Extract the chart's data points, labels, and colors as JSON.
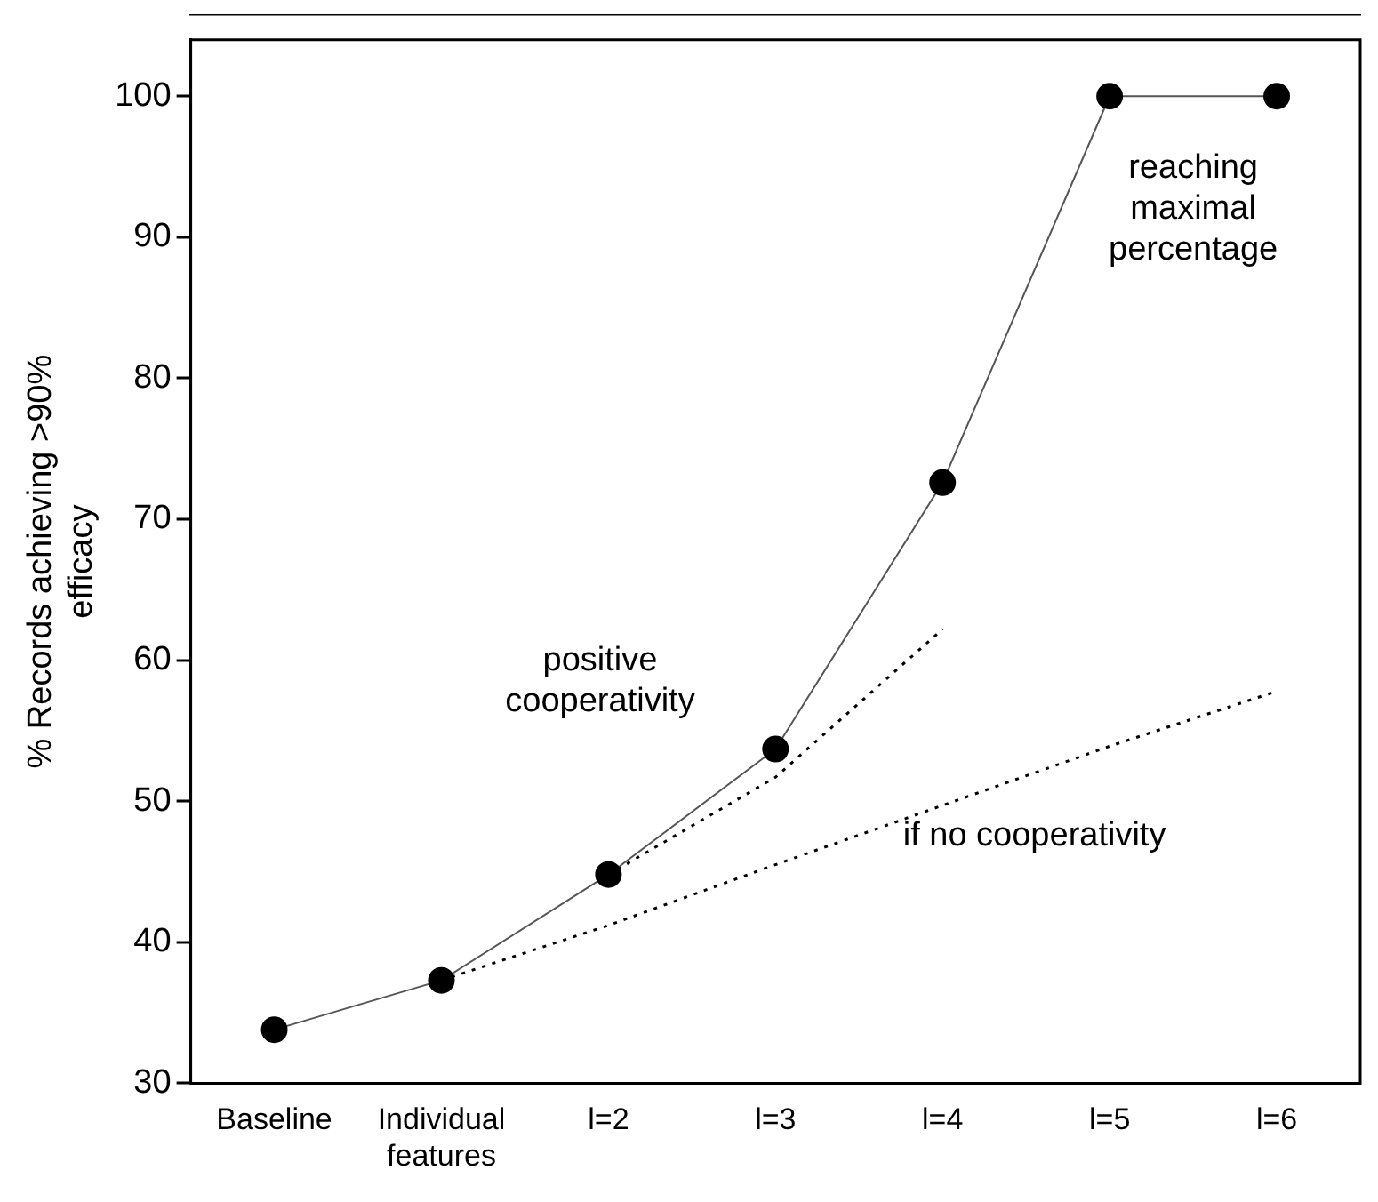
{
  "chart_data": {
    "type": "line",
    "ylabel": "% Records achieving >90% efficacy",
    "categories": [
      "Baseline",
      "Individual features",
      "l=2",
      "l=3",
      "l=4",
      "l=5",
      "l=6"
    ],
    "series": [
      {
        "color": "#000000",
        "values": [
          33.8,
          37.3,
          44.8,
          53.7,
          72.6,
          100,
          100
        ],
        "marker": "circle",
        "line_style": "solid"
      },
      {
        "color": "#000000",
        "values": [
          null,
          37.3,
          41.2,
          45.5,
          49.7,
          53.9,
          57.8
        ],
        "marker": "none",
        "line_style": "dotted"
      },
      {
        "color": "#000000",
        "values": [
          null,
          null,
          44.8,
          51.7,
          62.2,
          null,
          null
        ],
        "marker": "none",
        "line_style": "dotted"
      }
    ],
    "annotations": [
      "positive cooperativity",
      "if no cooperativity",
      "reaching maximal percentage"
    ],
    "ylim": [
      30,
      104
    ],
    "yticks": [
      30,
      40,
      50,
      60,
      70,
      80,
      90,
      100
    ],
    "grid": false,
    "legend": false
  }
}
